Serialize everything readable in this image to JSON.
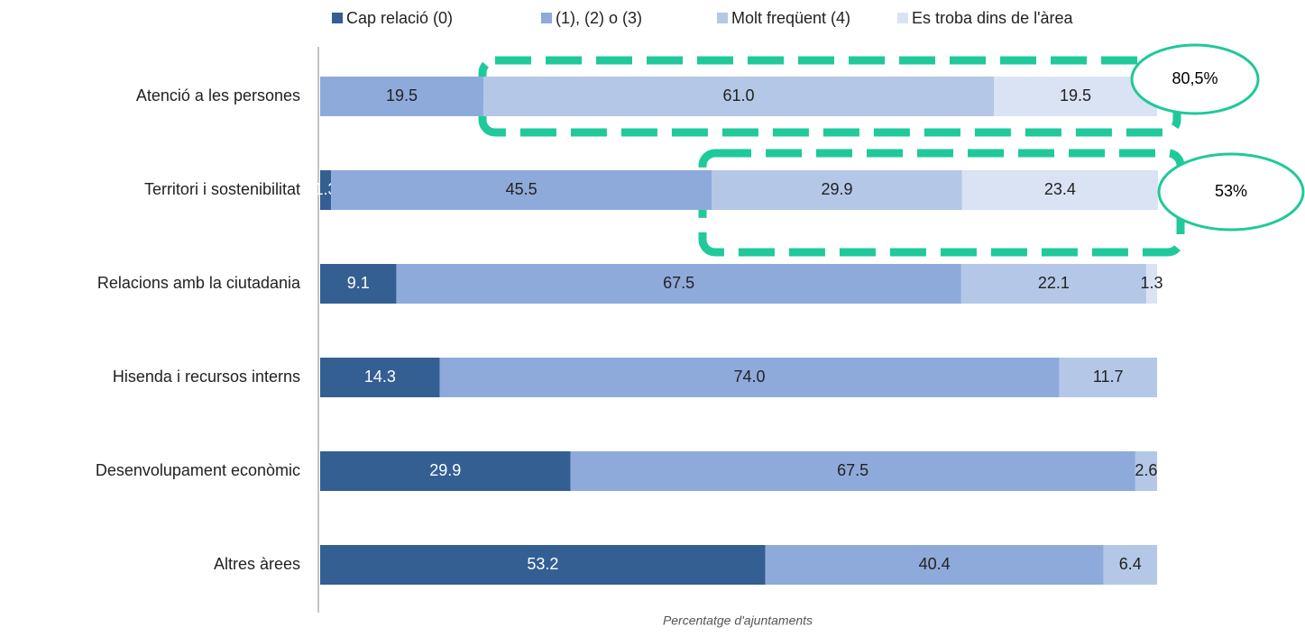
{
  "chart_data": {
    "type": "stacked_bar_horizontal",
    "categories": [
      "Atenció a les persones",
      "Territori i sostenibilitat",
      "Relacions amb la ciutadania",
      "Hisenda i recursos interns",
      "Desenvolupament econòmic",
      "Altres àrees"
    ],
    "series": [
      {
        "name": "Cap relació (0)",
        "color": "#335f93",
        "values": [
          0,
          1.3,
          9.1,
          14.3,
          29.9,
          53.2
        ],
        "value_labels": [
          null,
          "1.3",
          "9.1",
          "14.3",
          "29.9",
          "53.2"
        ]
      },
      {
        "name": "(1), (2) o (3)",
        "color": "#8eaadb",
        "values": [
          19.5,
          45.5,
          67.5,
          74.0,
          67.5,
          40.4
        ],
        "value_labels": [
          "19.5",
          "45.5",
          "67.5",
          "74.0",
          "67.5",
          "40.4"
        ]
      },
      {
        "name": "Molt freqüent (4)",
        "color": "#b4c7e7",
        "values": [
          61.0,
          29.9,
          22.1,
          11.7,
          2.6,
          6.4
        ],
        "value_labels": [
          "61.0",
          "29.9",
          "22.1",
          "11.7",
          "2.6",
          "6.4"
        ]
      },
      {
        "name": "Es troba dins de l'àrea",
        "color": "#dae3f3",
        "values": [
          19.5,
          23.4,
          1.3,
          0,
          0,
          0
        ],
        "value_labels": [
          "19.5",
          "23.4",
          "1.3",
          null,
          null,
          null
        ]
      }
    ],
    "xlim": [
      0,
      100
    ],
    "xlabel": "Percentatge d'ajuntaments",
    "annotations": [
      "80,5%",
      "53%"
    ],
    "legend": "top"
  }
}
